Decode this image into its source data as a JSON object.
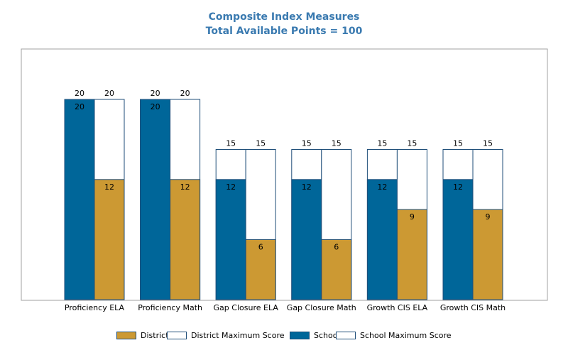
{
  "chart_data": {
    "type": "bar",
    "title": "Composite Index Measures",
    "subtitle": "Total Available Points = 100",
    "categories": [
      "Proficiency ELA",
      "Proficiency Math",
      "Gap Closure ELA",
      "Gap Closure Math",
      "Growth CIS ELA",
      "Growth CIS Math"
    ],
    "series": [
      {
        "name": "District",
        "values": [
          12,
          12,
          6,
          6,
          9,
          9
        ],
        "color": "#cc9933"
      },
      {
        "name": "District Maximum Score",
        "values": [
          20,
          20,
          15,
          15,
          15,
          15
        ],
        "color": "#ffffff"
      },
      {
        "name": "School",
        "values": [
          20,
          20,
          12,
          12,
          12,
          12
        ],
        "color": "#006699"
      },
      {
        "name": "School Maximum Score",
        "values": [
          20,
          20,
          15,
          15,
          15,
          15
        ],
        "color": "#ffffff"
      }
    ],
    "ylim": [
      0,
      20
    ],
    "grid": false,
    "legend_position": "bottom"
  }
}
